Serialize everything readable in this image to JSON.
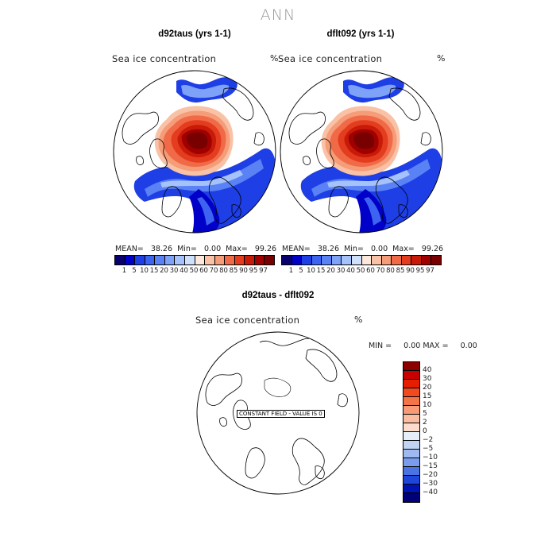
{
  "figure": {
    "title": "ANN"
  },
  "panels": [
    {
      "title": "d92taus (yrs 1-1)",
      "field": "Sea ice concentration",
      "units": "%",
      "stats": {
        "mean_label": "MEAN=",
        "mean": "38.26",
        "min_label": "Min=",
        "min": "0.00",
        "max_label": "Max=",
        "max": "99.26"
      }
    },
    {
      "title": "dflt092 (yrs 1-1)",
      "field": "Sea ice concentration",
      "units": "%",
      "stats": {
        "mean_label": "MEAN=",
        "mean": "38.26",
        "min_label": "Min=",
        "min": "0.00",
        "max_label": "Max=",
        "max": "99.26"
      }
    }
  ],
  "colorbar_top": {
    "labels": [
      "1",
      "5",
      "10",
      "15",
      "20",
      "30",
      "40",
      "50",
      "60",
      "70",
      "80",
      "85",
      "90",
      "95",
      "97"
    ],
    "colors": [
      "#08006e",
      "#0000c8",
      "#1e3ee6",
      "#3c64f0",
      "#5a82f5",
      "#7ea2f8",
      "#a6c2fa",
      "#cfe0fc",
      "#fde8dc",
      "#f9c2a6",
      "#f59c78",
      "#f06a48",
      "#e43c1e",
      "#c81a08",
      "#a00000",
      "#780000"
    ]
  },
  "diff_panel": {
    "title": "d92taus - dflt092",
    "field": "Sea ice concentration",
    "units": "%",
    "stats": "MIN =     0.00 MAX =     0.00",
    "constant_label": "CONSTANT FIELD - VALUE IS 0"
  },
  "colorbar_diff": {
    "labels": [
      "40",
      "30",
      "20",
      "15",
      "10",
      "5",
      "2",
      "0",
      "−2",
      "−5",
      "−10",
      "−15",
      "−20",
      "−30",
      "−40"
    ],
    "colors": [
      "#8c0000",
      "#c80000",
      "#e61e00",
      "#f04a1e",
      "#f5734a",
      "#f89a76",
      "#fabda2",
      "#fcdccc",
      "#e6eef8",
      "#c2d4f4",
      "#9ebaf0",
      "#7a9cec",
      "#4a74e4",
      "#1e46d8",
      "#0014b4",
      "#000078"
    ]
  }
}
